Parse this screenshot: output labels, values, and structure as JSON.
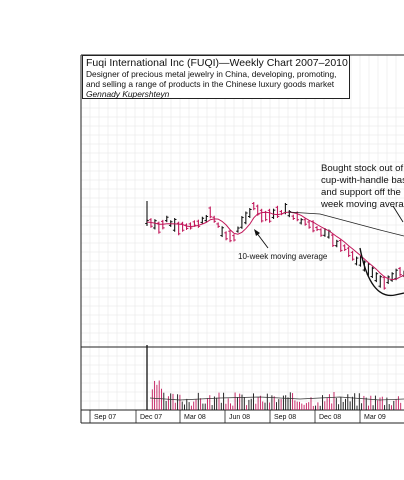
{
  "caption": {
    "title": "Fuqi International Inc (FUQI)—Weekly Chart 2007–2010",
    "description_line1": "Designer of precious metal jewelry in China, developing, promoting,",
    "description_line2": "and selling a range of products in the Chinese luxury goods market",
    "author": "Gennady Kupershteyn"
  },
  "chart_data": {
    "type": "bar",
    "title": "Fuqi International Inc (FUQI)—Weekly Chart 2007–2010",
    "x_tick_labels": [
      "Sep 07",
      "Dec 07",
      "Mar 08",
      "Jun 08",
      "Sep 08",
      "Dec 08",
      "Mar 09"
    ],
    "annotations": [
      {
        "text_lines": [
          "Bought stock out of",
          "cup-with-handle bas",
          "and support off the",
          "week moving averag"
        ]
      },
      {
        "text": "10-week moving average"
      }
    ],
    "series": [
      {
        "style": "ohlc-bars",
        "colors": {
          "up": "#111111",
          "down": "#c2185b"
        }
      },
      {
        "style": "moving-average",
        "color": "#c2185b"
      },
      {
        "style": "moving-average",
        "color": "#111111"
      },
      {
        "style": "volume-bars"
      }
    ],
    "grid": true,
    "legend": "none"
  },
  "colors": {
    "up_bar": "#111111",
    "down_bar": "#c2185b",
    "ma10": "#c2185b",
    "ma40": "#222222",
    "grid": "#e6e6e6",
    "frame": "#222222"
  }
}
